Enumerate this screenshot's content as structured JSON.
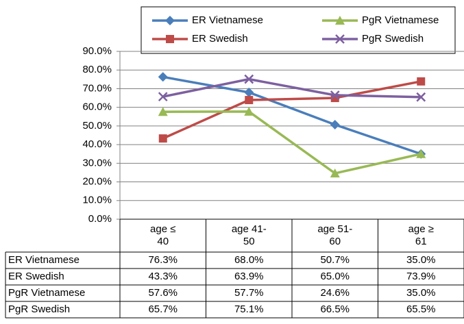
{
  "chart_data": {
    "type": "line",
    "categories": [
      "age ≤ 40",
      "age 41-50",
      "age 51-60",
      "age ≥ 61"
    ],
    "series": [
      {
        "name": "ER Vietnamese",
        "color": "#4a7ebb",
        "marker": "diamond",
        "values": [
          76.3,
          68.0,
          50.7,
          35.0
        ],
        "value_labels": [
          "76.3%",
          "68.0%",
          "50.7%",
          "35.0%"
        ]
      },
      {
        "name": "ER Swedish",
        "color": "#be4b48",
        "marker": "square",
        "values": [
          43.3,
          63.9,
          65.0,
          73.9
        ],
        "value_labels": [
          "43.3%",
          "63.9%",
          "65.0%",
          "73.9%"
        ]
      },
      {
        "name": "PgR Vietnamese",
        "color": "#98b954",
        "marker": "triangle",
        "values": [
          57.6,
          57.7,
          24.6,
          35.0
        ],
        "value_labels": [
          "57.6%",
          "57.7%",
          "24.6%",
          "35.0%"
        ]
      },
      {
        "name": "PgR Swedish",
        "color": "#7d60a0",
        "marker": "x",
        "values": [
          65.7,
          75.1,
          66.5,
          65.5
        ],
        "value_labels": [
          "65.7%",
          "75.1%",
          "66.5%",
          "65.5%"
        ]
      }
    ],
    "ylim": [
      0,
      90
    ],
    "yticks": [
      {
        "value": 0,
        "label": "0.0%"
      },
      {
        "value": 10,
        "label": "10.0%"
      },
      {
        "value": 20,
        "label": "20.0%"
      },
      {
        "value": 30,
        "label": "30.0%"
      },
      {
        "value": 40,
        "label": "40.0%"
      },
      {
        "value": 50,
        "label": "50.0%"
      },
      {
        "value": 60,
        "label": "60.0%"
      },
      {
        "value": 70,
        "label": "70.0%"
      },
      {
        "value": 80,
        "label": "80.0%"
      },
      {
        "value": 90,
        "label": "90.0%"
      }
    ],
    "grid": true,
    "legend": "top"
  }
}
